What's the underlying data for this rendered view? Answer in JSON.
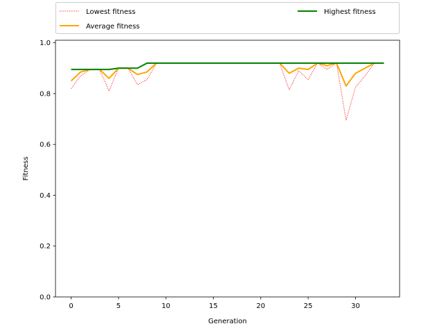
{
  "chart_data": {
    "type": "line",
    "title": "",
    "xlabel": "Generation",
    "ylabel": "Fitness",
    "xlim": [
      -1.65,
      34.65
    ],
    "ylim": [
      0.0,
      1.01
    ],
    "xticks": [
      0,
      5,
      10,
      15,
      20,
      25,
      30
    ],
    "yticks": [
      0.0,
      0.2,
      0.4,
      0.6,
      0.8,
      1.0
    ],
    "xtick_labels": [
      "0",
      "5",
      "10",
      "15",
      "20",
      "25",
      "30"
    ],
    "ytick_labels": [
      "0.0",
      "0.2",
      "0.4",
      "0.6",
      "0.8",
      "1.0"
    ],
    "grid": false,
    "legend": {
      "placement": "top, outside plot",
      "columns": 2
    },
    "series": [
      {
        "name": "Lowest fitness",
        "color": "#ff0000",
        "style": "dotted",
        "x": [
          0,
          1,
          2,
          3,
          4,
          5,
          6,
          7,
          8,
          9,
          10,
          11,
          12,
          13,
          14,
          15,
          16,
          17,
          18,
          19,
          20,
          21,
          22,
          23,
          24,
          25,
          26,
          27,
          28,
          29,
          30,
          31,
          32
        ],
        "values": [
          0.82,
          0.87,
          0.895,
          0.895,
          0.81,
          0.9,
          0.9,
          0.835,
          0.855,
          0.92,
          0.92,
          0.92,
          0.92,
          0.92,
          0.92,
          0.92,
          0.92,
          0.92,
          0.92,
          0.92,
          0.92,
          0.92,
          0.92,
          0.815,
          0.89,
          0.855,
          0.92,
          0.895,
          0.92,
          0.695,
          0.825,
          0.87,
          0.92
        ]
      },
      {
        "name": "Average fitness",
        "color": "#ffa500",
        "style": "solid",
        "x": [
          0,
          1,
          2,
          3,
          4,
          5,
          6,
          7,
          8,
          9,
          10,
          11,
          12,
          13,
          14,
          15,
          16,
          17,
          18,
          19,
          20,
          21,
          22,
          23,
          24,
          25,
          26,
          27,
          28,
          29,
          30,
          31,
          32
        ],
        "values": [
          0.85,
          0.885,
          0.895,
          0.895,
          0.86,
          0.9,
          0.9,
          0.875,
          0.885,
          0.92,
          0.92,
          0.92,
          0.92,
          0.92,
          0.92,
          0.92,
          0.92,
          0.92,
          0.92,
          0.92,
          0.92,
          0.92,
          0.92,
          0.88,
          0.9,
          0.895,
          0.92,
          0.91,
          0.92,
          0.83,
          0.88,
          0.9,
          0.92
        ]
      },
      {
        "name": "Highest fitness",
        "color": "#008000",
        "style": "solid",
        "x": [
          0,
          1,
          2,
          3,
          4,
          5,
          6,
          7,
          8,
          9,
          10,
          11,
          12,
          13,
          14,
          15,
          16,
          17,
          18,
          19,
          20,
          21,
          22,
          23,
          24,
          25,
          26,
          27,
          28,
          29,
          30,
          31,
          32,
          33
        ],
        "values": [
          0.895,
          0.895,
          0.895,
          0.895,
          0.895,
          0.9,
          0.9,
          0.9,
          0.92,
          0.92,
          0.92,
          0.92,
          0.92,
          0.92,
          0.92,
          0.92,
          0.92,
          0.92,
          0.92,
          0.92,
          0.92,
          0.92,
          0.92,
          0.92,
          0.92,
          0.92,
          0.92,
          0.92,
          0.92,
          0.92,
          0.92,
          0.92,
          0.92,
          0.92
        ]
      }
    ]
  }
}
